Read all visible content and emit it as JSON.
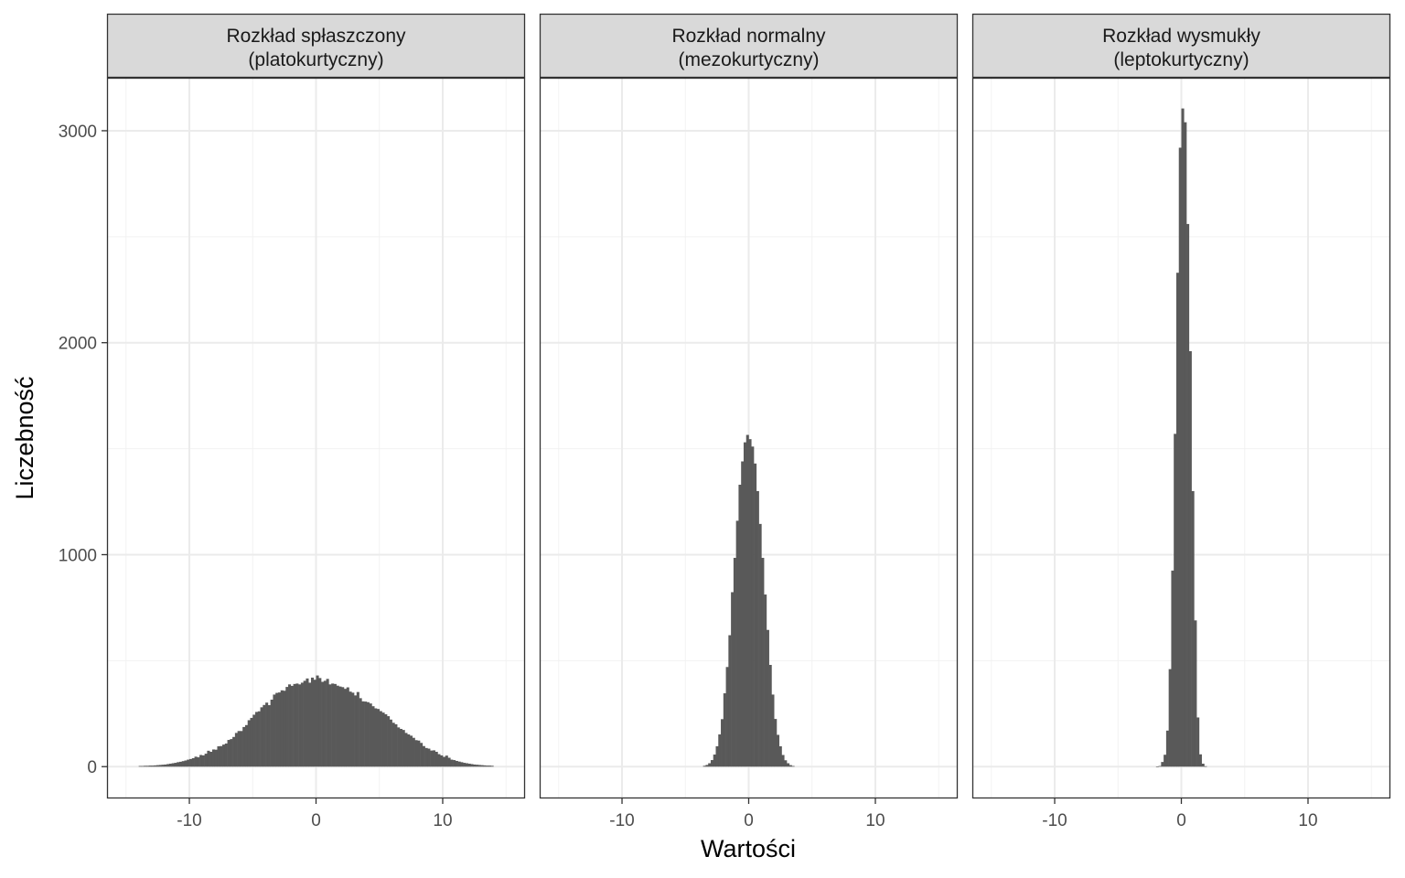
{
  "chart_data": {
    "type": "bar",
    "xlabel": "Wartości",
    "ylabel": "Liczebność",
    "xlim": [
      -16.5,
      16.5
    ],
    "ylim": [
      -150,
      3250
    ],
    "x_ticks": [
      -10,
      0,
      10
    ],
    "x_tick_labels": [
      "-10",
      "0",
      "10"
    ],
    "y_ticks": [
      0,
      1000,
      2000,
      3000
    ],
    "y_tick_labels": [
      "0",
      "1000",
      "2000",
      "3000"
    ],
    "grid": true,
    "theme": "bw",
    "bar_color": "#595959",
    "panels": [
      {
        "title_lines": [
          "Rozkład spłaszczony",
          "(platokurtyczny)"
        ],
        "bin_width": 0.2,
        "x": [
          -14,
          -13.8,
          -13.6,
          -13.4,
          -13.2,
          -13,
          -12.8,
          -12.6,
          -12.4,
          -12.2,
          -12,
          -11.8,
          -11.6,
          -11.4,
          -11.2,
          -11,
          -10.8,
          -10.6,
          -10.4,
          -10.2,
          -10,
          -9.8,
          -9.6,
          -9.4,
          -9.2,
          -9,
          -8.8,
          -8.6,
          -8.4,
          -8.2,
          -8,
          -7.8,
          -7.6,
          -7.4,
          -7.2,
          -7,
          -6.8,
          -6.6,
          -6.4,
          -6.2,
          -6,
          -5.8,
          -5.6,
          -5.4,
          -5.2,
          -5,
          -4.8,
          -4.6,
          -4.4,
          -4.2,
          -4,
          -3.8,
          -3.6,
          -3.4,
          -3.2,
          -3,
          -2.8,
          -2.6,
          -2.4,
          -2.2,
          -2,
          -1.8,
          -1.6,
          -1.4,
          -1.2,
          -1,
          -0.8,
          -0.6,
          -0.4,
          -0.2,
          0,
          0.2,
          0.4,
          0.6,
          0.8,
          1,
          1.2,
          1.4,
          1.6,
          1.8,
          2,
          2.2,
          2.4,
          2.6,
          2.8,
          3,
          3.2,
          3.4,
          3.6,
          3.8,
          4,
          4.2,
          4.4,
          4.6,
          4.8,
          5,
          5.2,
          5.4,
          5.6,
          5.8,
          6,
          6.2,
          6.4,
          6.6,
          6.8,
          7,
          7.2,
          7.4,
          7.6,
          7.8,
          8,
          8.2,
          8.4,
          8.6,
          8.8,
          9,
          9.2,
          9.4,
          9.6,
          9.8,
          10,
          10.2,
          10.4,
          10.6,
          10.8,
          11,
          11.2,
          11.4,
          11.6,
          11.8,
          12,
          12.2,
          12.4,
          12.6,
          12.8,
          13,
          13.2,
          13.4,
          13.6,
          13.8
        ],
        "counts": [
          3,
          3,
          4,
          4,
          5,
          5,
          6,
          7,
          8,
          9,
          10,
          12,
          14,
          16,
          18,
          21,
          23,
          26,
          29,
          33,
          36,
          40,
          47,
          44,
          55,
          53,
          61,
          75,
          70,
          81,
          80,
          96,
          97,
          104,
          109,
          126,
          130,
          140,
          159,
          168,
          168,
          187,
          196,
          219,
          230,
          245,
          258,
          261,
          280,
          291,
          302,
          290,
          316,
          340,
          348,
          350,
          360,
          358,
          376,
          388,
          381,
          390,
          392,
          388,
          396,
          405,
          416,
          396,
          420,
          410,
          430,
          418,
          400,
          405,
          414,
          388,
          392,
          390,
          382,
          378,
          375,
          367,
          374,
          354,
          349,
          336,
          352,
          323,
          308,
          307,
          304,
          298,
          285,
          275,
          272,
          262,
          255,
          247,
          238,
          222,
          207,
          200,
          185,
          178,
          173,
          159,
          152,
          146,
          136,
          125,
          123,
          112,
          97,
          88,
          85,
          76,
          77,
          70,
          59,
          53,
          46,
          52,
          42,
          33,
          31,
          27,
          24,
          21,
          18,
          16,
          14,
          12,
          10,
          9,
          8,
          7,
          6,
          5,
          5,
          4
        ]
      },
      {
        "title_lines": [
          "Rozkład normalny",
          "(mezokurtyczny)"
        ],
        "bin_width": 0.2,
        "x": [
          -3.6,
          -3.4,
          -3.2,
          -3,
          -2.8,
          -2.6,
          -2.4,
          -2.2,
          -2,
          -1.8,
          -1.6,
          -1.4,
          -1.2,
          -1,
          -0.8,
          -0.6,
          -0.4,
          -0.2,
          0,
          0.2,
          0.4,
          0.6,
          0.8,
          1,
          1.2,
          1.4,
          1.6,
          1.8,
          2,
          2.2,
          2.4,
          2.6,
          2.8,
          3,
          3.2,
          3.4
        ],
        "counts": [
          4,
          8,
          16,
          31,
          57,
          96,
          152,
          224,
          346,
          470,
          620,
          823,
          985,
          1160,
          1330,
          1440,
          1530,
          1565,
          1545,
          1510,
          1430,
          1300,
          1145,
          985,
          812,
          645,
          480,
          340,
          225,
          150,
          96,
          55,
          30,
          16,
          7,
          3
        ]
      },
      {
        "title_lines": [
          "Rozkład wysmukły",
          "(leptokurtyczny)"
        ],
        "bin_width": 0.2,
        "x": [
          -2,
          -1.8,
          -1.6,
          -1.4,
          -1.2,
          -1,
          -0.8,
          -0.6,
          -0.4,
          -0.2,
          0,
          0.2,
          0.4,
          0.6,
          0.8,
          1,
          1.2,
          1.4,
          1.6,
          1.8
        ],
        "counts": [
          1,
          3,
          22,
          56,
          170,
          460,
          925,
          1570,
          2330,
          2920,
          3105,
          3040,
          2560,
          1960,
          1300,
          690,
          232,
          58,
          14,
          2
        ]
      }
    ]
  }
}
